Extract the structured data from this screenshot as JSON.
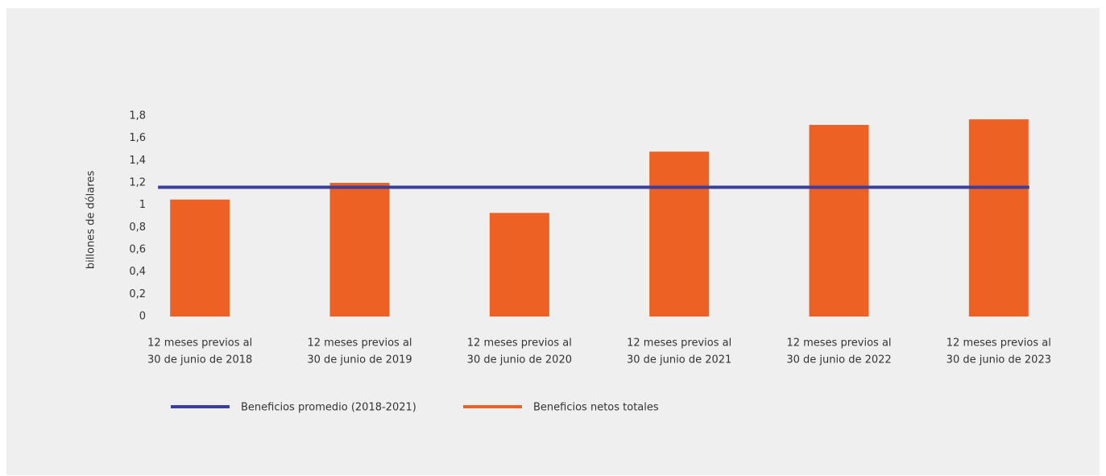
{
  "chart_data": {
    "type": "bar",
    "y_label": "billones de dólares",
    "categories": [
      [
        "12 meses previos al",
        "30 de junio de 2018"
      ],
      [
        "12 meses previos al",
        "30 de junio de 2019"
      ],
      [
        "12 meses previos al",
        "30 de junio de 2020"
      ],
      [
        "12 meses previos al",
        "30 de junio de 2021"
      ],
      [
        "12 meses previos al",
        "30 de junio de 2022"
      ],
      [
        "12 meses previos al",
        "30 de junio de 2023"
      ]
    ],
    "series": [
      {
        "name": "Beneficios promedio (2018-2021)",
        "type": "line",
        "color": "#3a3f9e",
        "values": [
          1.16,
          1.16,
          1.16,
          1.16,
          1.16,
          1.16
        ]
      },
      {
        "name": "Beneficios netos totales",
        "type": "bar",
        "color": "#ee6125",
        "values": [
          1.05,
          1.2,
          0.93,
          1.48,
          1.72,
          1.77
        ]
      }
    ],
    "ylim": [
      0,
      1.8
    ],
    "yticks": [
      0,
      {
        "value": 0.2,
        "label": "0,2"
      },
      {
        "value": 0.4,
        "label": "0,4"
      },
      {
        "value": 0.6,
        "label": "0,6"
      },
      {
        "value": 0.8,
        "label": "0,8"
      },
      1,
      {
        "value": 1.2,
        "label": "1,2"
      },
      {
        "value": 1.4,
        "label": "1,4"
      },
      {
        "value": 1.6,
        "label": "1,6"
      },
      {
        "value": 1.8,
        "label": "1,8"
      }
    ],
    "grid": false,
    "legend": "bottom-left"
  }
}
